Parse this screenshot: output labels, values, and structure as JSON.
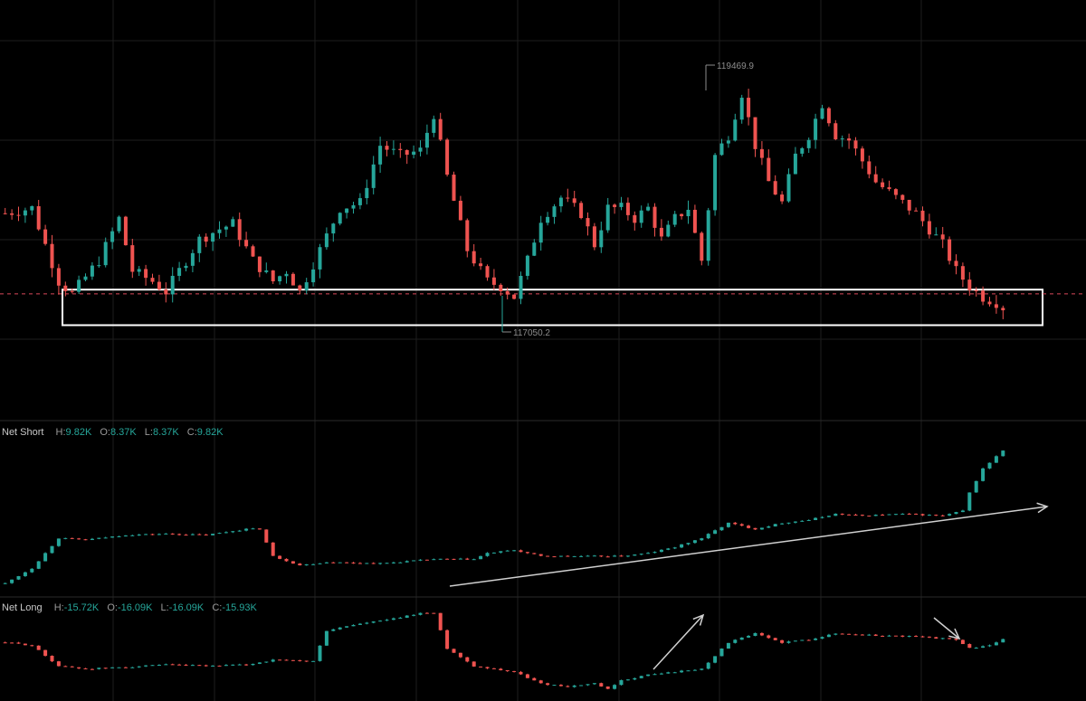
{
  "colors": {
    "background": "#000000",
    "up": "#26a69a",
    "down": "#ef5350",
    "grid": "#1e1e1e",
    "annotation": "#d0d0d0",
    "price_line": "#d9485a",
    "label_text": "#8d8d8d"
  },
  "chart_data": [
    {
      "type": "candlestick",
      "pane": "price",
      "ylim": [
        116600,
        119800
      ],
      "high_label": "119469.9",
      "low_label": "117050.2",
      "current_price_line": 117380,
      "support_zone": [
        117080,
        117420
      ],
      "candle_count": 150,
      "path": [
        [
          0,
          118150
        ],
        [
          4,
          118200
        ],
        [
          8,
          117500
        ],
        [
          10,
          117380
        ],
        [
          14,
          117700
        ],
        [
          17,
          118100
        ],
        [
          19,
          117600
        ],
        [
          22,
          117500
        ],
        [
          24,
          117400
        ],
        [
          27,
          117700
        ],
        [
          29,
          117900
        ],
        [
          32,
          118000
        ],
        [
          34,
          118050
        ],
        [
          37,
          117700
        ],
        [
          40,
          117500
        ],
        [
          42,
          117600
        ],
        [
          44,
          117400
        ],
        [
          47,
          117800
        ],
        [
          50,
          118200
        ],
        [
          53,
          118250
        ],
        [
          56,
          118800
        ],
        [
          59,
          118700
        ],
        [
          62,
          118750
        ],
        [
          64,
          119100
        ],
        [
          66,
          118500
        ],
        [
          69,
          117800
        ],
        [
          72,
          117500
        ],
        [
          74,
          117450
        ],
        [
          76,
          117350
        ],
        [
          78,
          117700
        ],
        [
          80,
          118100
        ],
        [
          83,
          118300
        ],
        [
          86,
          118150
        ],
        [
          88,
          117850
        ],
        [
          90,
          118200
        ],
        [
          92,
          118200
        ],
        [
          94,
          118100
        ],
        [
          96,
          118200
        ],
        [
          98,
          117900
        ],
        [
          100,
          118100
        ],
        [
          102,
          118200
        ],
        [
          104,
          117700
        ],
        [
          106,
          118700
        ],
        [
          108,
          118900
        ],
        [
          110,
          119300
        ],
        [
          112,
          118800
        ],
        [
          114,
          118450
        ],
        [
          116,
          118250
        ],
        [
          118,
          118700
        ],
        [
          120,
          118900
        ],
        [
          122,
          119200
        ],
        [
          124,
          118900
        ],
        [
          126,
          118850
        ],
        [
          128,
          118650
        ],
        [
          130,
          118450
        ],
        [
          132,
          118350
        ],
        [
          134,
          118250
        ],
        [
          136,
          118150
        ],
        [
          138,
          118000
        ],
        [
          140,
          117850
        ],
        [
          142,
          117600
        ],
        [
          144,
          117450
        ],
        [
          146,
          117350
        ],
        [
          148,
          117300
        ],
        [
          149,
          117250
        ]
      ]
    },
    {
      "type": "candlestick",
      "pane": "indicator",
      "title": "Net Short",
      "ohlc": {
        "H": "9.82K",
        "O": "8.37K",
        "L": "8.37K",
        "C": "9.82K"
      },
      "path": [
        [
          0,
          0.0
        ],
        [
          4,
          0.25
        ],
        [
          8,
          0.75
        ],
        [
          12,
          0.72
        ],
        [
          18,
          0.8
        ],
        [
          24,
          0.82
        ],
        [
          30,
          0.8
        ],
        [
          36,
          0.9
        ],
        [
          38,
          0.9
        ],
        [
          40,
          0.45
        ],
        [
          44,
          0.3
        ],
        [
          48,
          0.35
        ],
        [
          56,
          0.33
        ],
        [
          64,
          0.4
        ],
        [
          70,
          0.4
        ],
        [
          72,
          0.5
        ],
        [
          76,
          0.55
        ],
        [
          80,
          0.45
        ],
        [
          88,
          0.45
        ],
        [
          92,
          0.45
        ],
        [
          96,
          0.5
        ],
        [
          100,
          0.6
        ],
        [
          104,
          0.75
        ],
        [
          108,
          1.0
        ],
        [
          112,
          0.9
        ],
        [
          116,
          1.0
        ],
        [
          120,
          1.05
        ],
        [
          124,
          1.15
        ],
        [
          128,
          1.12
        ],
        [
          134,
          1.15
        ],
        [
          140,
          1.12
        ],
        [
          143,
          1.2
        ],
        [
          144,
          1.5
        ],
        [
          146,
          1.9
        ],
        [
          149,
          2.2
        ]
      ]
    },
    {
      "type": "candlestick",
      "pane": "indicator",
      "title": "Net Long",
      "ohlc": {
        "H": "-15.72K",
        "O": "-16.09K",
        "L": "-16.09K",
        "C": "-15.93K"
      },
      "path": [
        [
          0,
          1.0
        ],
        [
          4,
          0.95
        ],
        [
          8,
          0.6
        ],
        [
          12,
          0.55
        ],
        [
          18,
          0.58
        ],
        [
          24,
          0.62
        ],
        [
          30,
          0.6
        ],
        [
          36,
          0.62
        ],
        [
          40,
          0.7
        ],
        [
          46,
          0.68
        ],
        [
          48,
          1.2
        ],
        [
          52,
          1.3
        ],
        [
          58,
          1.4
        ],
        [
          62,
          1.5
        ],
        [
          64,
          1.5
        ],
        [
          66,
          0.9
        ],
        [
          70,
          0.6
        ],
        [
          76,
          0.5
        ],
        [
          80,
          0.3
        ],
        [
          84,
          0.25
        ],
        [
          88,
          0.3
        ],
        [
          90,
          0.2
        ],
        [
          92,
          0.35
        ],
        [
          96,
          0.45
        ],
        [
          100,
          0.5
        ],
        [
          104,
          0.55
        ],
        [
          108,
          1.0
        ],
        [
          112,
          1.15
        ],
        [
          116,
          1.0
        ],
        [
          120,
          1.05
        ],
        [
          124,
          1.15
        ],
        [
          130,
          1.12
        ],
        [
          136,
          1.1
        ],
        [
          142,
          1.05
        ],
        [
          144,
          0.9
        ],
        [
          147,
          0.95
        ],
        [
          149,
          1.05
        ]
      ]
    }
  ]
}
